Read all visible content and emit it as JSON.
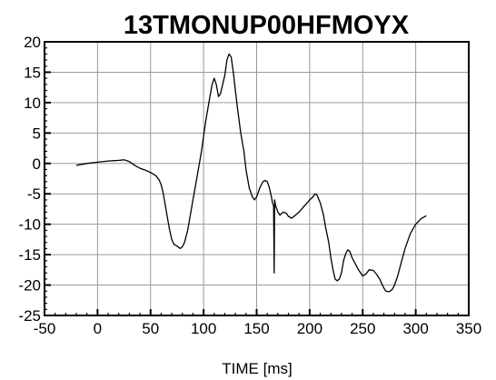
{
  "chart_data": {
    "type": "line",
    "title": "13TMONUP00HFMOYX",
    "xlabel": "TIME [ms]",
    "ylabel": "",
    "xlim": [
      -50,
      350
    ],
    "ylim": [
      -25,
      20
    ],
    "xticks": [
      -50,
      0,
      50,
      100,
      150,
      200,
      250,
      300,
      350
    ],
    "yticks": [
      -25,
      -20,
      -15,
      -10,
      -5,
      0,
      5,
      10,
      15,
      20
    ],
    "grid": true,
    "series": [
      {
        "color": "#000000",
        "x": [
          -20,
          -10,
          0,
          10,
          20,
          25,
          30,
          35,
          40,
          45,
          50,
          55,
          58,
          60,
          62,
          64,
          66,
          68,
          70,
          72,
          75,
          78,
          80,
          82,
          85,
          88,
          90,
          92,
          95,
          98,
          100,
          102,
          104,
          106,
          108,
          110,
          112,
          114,
          116,
          118,
          120,
          122,
          124,
          126,
          128,
          130,
          132,
          135,
          138,
          140,
          143,
          146,
          148,
          150,
          153,
          156,
          158,
          160,
          162,
          164,
          165,
          166,
          166.5,
          167,
          168,
          170,
          172,
          175,
          178,
          180,
          183,
          186,
          190,
          195,
          200,
          203,
          205,
          207,
          210,
          213,
          215,
          218,
          220,
          222,
          224,
          226,
          228,
          230,
          232,
          234,
          236,
          238,
          240,
          243,
          246,
          250,
          253,
          256,
          260,
          263,
          266,
          268,
          270,
          272,
          274,
          276,
          278,
          280,
          283,
          286,
          290,
          295,
          300,
          305,
          310
        ],
        "y": [
          -0.3,
          0,
          0.2,
          0.4,
          0.5,
          0.6,
          0.3,
          -0.3,
          -0.8,
          -1.1,
          -1.5,
          -2,
          -2.7,
          -3.5,
          -5,
          -7,
          -9,
          -11,
          -12.5,
          -13.3,
          -13.6,
          -14,
          -13.7,
          -13,
          -11,
          -8,
          -6,
          -4,
          -1,
          2,
          4.5,
          7,
          9,
          11,
          13,
          14,
          13,
          11,
          11.5,
          13,
          14.5,
          17,
          18,
          17.5,
          15,
          12,
          9,
          5,
          2,
          -1,
          -4,
          -5.5,
          -6,
          -5.5,
          -4,
          -3,
          -2.8,
          -3,
          -4,
          -5.5,
          -6.5,
          -7,
          -18,
          -6,
          -7,
          -8,
          -8.5,
          -8,
          -8.2,
          -8.7,
          -9,
          -8.6,
          -8,
          -7,
          -6,
          -5.5,
          -5,
          -5.2,
          -6.5,
          -8.5,
          -10.5,
          -13,
          -15.5,
          -17.5,
          -19,
          -19.3,
          -19,
          -18,
          -16,
          -14.8,
          -14.2,
          -14.5,
          -15.5,
          -16.5,
          -17.5,
          -18.5,
          -18.2,
          -17.5,
          -17.6,
          -18.2,
          -19,
          -19.8,
          -20.5,
          -21,
          -21.1,
          -21,
          -20.7,
          -20,
          -18.5,
          -16.5,
          -14,
          -11.5,
          -10,
          -9.1,
          -8.6
        ]
      }
    ]
  }
}
